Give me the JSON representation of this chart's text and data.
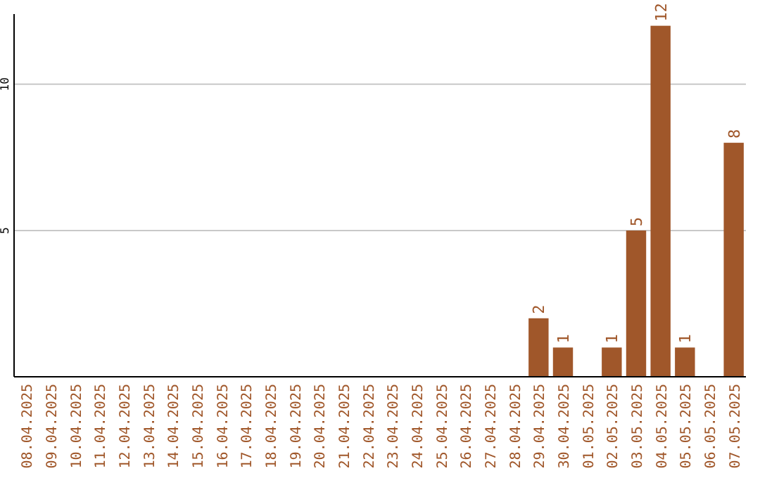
{
  "chart_data": {
    "type": "bar",
    "categories": [
      "08.04.2025",
      "09.04.2025",
      "10.04.2025",
      "11.04.2025",
      "12.04.2025",
      "13.04.2025",
      "14.04.2025",
      "15.04.2025",
      "16.04.2025",
      "17.04.2025",
      "18.04.2025",
      "19.04.2025",
      "20.04.2025",
      "21.04.2025",
      "22.04.2025",
      "23.04.2025",
      "24.04.2025",
      "25.04.2025",
      "26.04.2025",
      "27.04.2025",
      "28.04.2025",
      "29.04.2025",
      "30.04.2025",
      "01.05.2025",
      "02.05.2025",
      "03.05.2025",
      "04.05.2025",
      "05.05.2025",
      "06.05.2025",
      "07.05.2025"
    ],
    "values": [
      0,
      0,
      0,
      0,
      0,
      0,
      0,
      0,
      0,
      0,
      0,
      0,
      0,
      0,
      0,
      0,
      0,
      0,
      0,
      0,
      0,
      2,
      1,
      0,
      1,
      5,
      12,
      1,
      0,
      8
    ],
    "value_labels": [
      null,
      null,
      null,
      null,
      null,
      null,
      null,
      null,
      null,
      null,
      null,
      null,
      null,
      null,
      null,
      null,
      null,
      null,
      null,
      null,
      null,
      "2",
      "1",
      null,
      "1",
      "5",
      "12",
      "1",
      null,
      "8"
    ],
    "color": "#a0572a",
    "ylim": [
      0,
      12.4
    ],
    "yticks": [
      5,
      10
    ],
    "grid": "y"
  }
}
